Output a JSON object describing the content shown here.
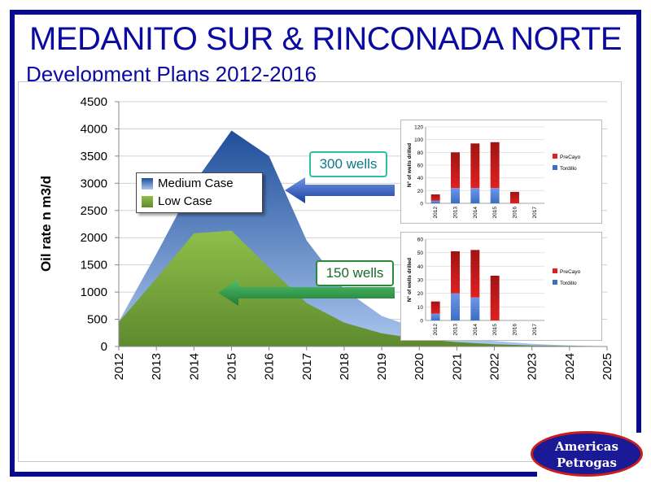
{
  "title": "MEDANITO SUR & RINCONADA NORTE",
  "subtitle": "Development Plans 2012-2016",
  "colors": {
    "navy": "#0a0a8c",
    "medium_fill": "#3a6fc4",
    "low_fill": "#6f9a3a",
    "precayo": "#e02020",
    "tordillo": "#3a6fc4",
    "callout_teal": "#2bbfa8",
    "callout_green": "#2a8a3a"
  },
  "callouts": {
    "top": "300 wells",
    "bottom": "150 wells"
  },
  "logo": {
    "line1": "Americas",
    "line2": "Petrogas"
  },
  "chart_data": [
    {
      "type": "area",
      "ylabel": "Oil rate n m3/d",
      "xlabel": "",
      "x": [
        2012,
        2013,
        2014,
        2015,
        2016,
        2017,
        2018,
        2019,
        2020,
        2021,
        2022,
        2023,
        2024,
        2025
      ],
      "ylim": [
        0,
        4500
      ],
      "yticks": [
        0,
        500,
        1000,
        1500,
        2000,
        2500,
        3000,
        3500,
        4000,
        4500
      ],
      "legend_position": "upper-left",
      "series": [
        {
          "name": "Medium Case",
          "values": [
            460,
            1700,
            3000,
            3970,
            3500,
            1950,
            1050,
            560,
            320,
            180,
            100,
            50,
            20,
            5
          ]
        },
        {
          "name": "Low Case",
          "values": [
            450,
            1250,
            2080,
            2130,
            1450,
            800,
            440,
            240,
            140,
            80,
            40,
            20,
            10,
            5
          ]
        }
      ]
    },
    {
      "type": "bar",
      "ylabel": "N° of wells drilled",
      "categories": [
        "2012",
        "2013",
        "2014",
        "2015",
        "2016",
        "2017"
      ],
      "ylim": [
        0,
        120
      ],
      "yticks": [
        0,
        20,
        40,
        60,
        80,
        100,
        120
      ],
      "stacked": true,
      "series": [
        {
          "name": "Tordillo",
          "values": [
            4,
            24,
            24,
            24,
            0,
            0
          ]
        },
        {
          "name": "PreCayo",
          "values": [
            10,
            56,
            70,
            72,
            18,
            0
          ]
        }
      ]
    },
    {
      "type": "bar",
      "ylabel": "N° of wells drilled",
      "categories": [
        "2012",
        "2013",
        "2014",
        "2015",
        "2016",
        "2017"
      ],
      "ylim": [
        0,
        60
      ],
      "yticks": [
        0,
        10,
        20,
        30,
        40,
        50,
        60
      ],
      "stacked": true,
      "series": [
        {
          "name": "Tordillo",
          "values": [
            5,
            20,
            17,
            0,
            0,
            0
          ]
        },
        {
          "name": "PreCayo",
          "values": [
            9,
            31,
            35,
            33,
            0,
            0
          ]
        }
      ]
    }
  ]
}
